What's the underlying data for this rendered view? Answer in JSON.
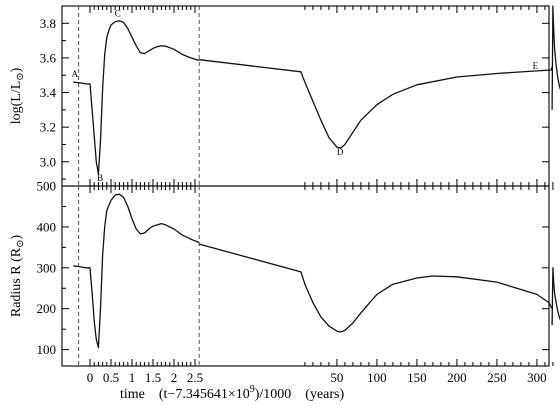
{
  "chart_data": {
    "type": "line",
    "xlabel_parts": [
      "time",
      "(t−7.345641×10",
      "9",
      ")/1000",
      "(years)"
    ],
    "x_tick_labels": [
      "0",
      "0.5",
      "1",
      "1.5",
      "2",
      "2.5",
      "50",
      "100",
      "150",
      "200",
      "250",
      "300"
    ],
    "panels": [
      {
        "id": "luminosity",
        "ylabel_parts": [
          "log(L/L",
          "⊙",
          ")"
        ],
        "ylim": [
          2.86,
          3.9
        ],
        "y_ticks": [
          3.0,
          3.2,
          3.4,
          3.6,
          3.8
        ],
        "y_tick_labels": [
          "3.0",
          "3.2",
          "3.4",
          "3.6",
          "3.8"
        ],
        "segments": [
          {
            "x": [
              -0.4,
              -0.2,
              -0.1,
              0.0,
              0.05,
              0.1,
              0.15,
              0.2,
              0.25,
              0.3,
              0.35,
              0.4,
              0.45,
              0.5,
              0.6,
              0.7,
              0.8,
              0.9,
              1.0,
              1.1,
              1.2,
              1.3,
              1.4,
              1.5,
              1.6,
              1.7,
              1.8,
              2.0,
              2.2,
              2.4,
              2.6
            ],
            "y": [
              3.46,
              3.455,
              3.45,
              3.45,
              3.3,
              3.15,
              3.0,
              2.93,
              3.12,
              3.42,
              3.62,
              3.72,
              3.76,
              3.79,
              3.81,
              3.815,
              3.805,
              3.77,
              3.72,
              3.67,
              3.63,
              3.625,
              3.64,
              3.655,
              3.665,
              3.67,
              3.668,
              3.65,
              3.62,
              3.6,
              3.585
            ]
          },
          {
            "x": [
              2.6,
              5,
              10,
              20,
              30,
              40,
              50,
              55,
              60,
              70,
              80,
              100,
              120,
              150,
              200,
              250,
              300,
              318,
              319
            ],
            "y": [
              3.59,
              3.52,
              3.46,
              3.35,
              3.24,
              3.14,
              3.085,
              3.08,
              3.1,
              3.17,
              3.24,
              3.33,
              3.39,
              3.445,
              3.49,
              3.51,
              3.525,
              3.53,
              3.55
            ]
          },
          {
            "x": [
              319,
              320,
              321,
              322,
              324,
              326,
              328,
              330
            ],
            "y": [
              3.3,
              3.9,
              3.76,
              3.66,
              3.56,
              3.49,
              3.44,
              3.41
            ]
          }
        ],
        "point_labels": [
          {
            "text": "A",
            "x": -0.36,
            "y": 3.49
          },
          {
            "text": "B",
            "x": 0.24,
            "y": 2.89
          },
          {
            "text": "C",
            "x": 0.66,
            "y": 3.84
          },
          {
            "text": "D",
            "x": 54,
            "y": 3.04
          },
          {
            "text": "E",
            "x": 298,
            "y": 3.535
          }
        ]
      },
      {
        "id": "radius",
        "ylabel_parts": [
          "Radius  R  (R",
          "⊙",
          ")"
        ],
        "ylim": [
          60,
          500
        ],
        "y_ticks": [
          100,
          200,
          300,
          400,
          500
        ],
        "y_tick_labels": [
          "100",
          "200",
          "300",
          "400",
          "500"
        ],
        "segments": [
          {
            "x": [
              -0.4,
              -0.2,
              -0.1,
              0.0,
              0.05,
              0.1,
              0.15,
              0.2,
              0.25,
              0.3,
              0.35,
              0.4,
              0.5,
              0.6,
              0.7,
              0.8,
              0.9,
              1.0,
              1.1,
              1.2,
              1.3,
              1.4,
              1.5,
              1.6,
              1.7,
              1.8,
              2.0,
              2.2,
              2.4,
              2.6
            ],
            "y": [
              305,
              302,
              300,
              300,
              240,
              170,
              125,
              105,
              200,
              330,
              400,
              440,
              465,
              478,
              480,
              472,
              450,
              420,
              395,
              383,
              385,
              395,
              402,
              405,
              408,
              405,
              395,
              380,
              370,
              362
            ]
          },
          {
            "x": [
              2.6,
              5,
              10,
              20,
              30,
              40,
              50,
              55,
              60,
              70,
              80,
              100,
              120,
              150,
              170,
              200,
              250,
              300,
              315,
              319
            ],
            "y": [
              358,
              290,
              260,
              215,
              180,
              158,
              145,
              143,
              147,
              165,
              190,
              235,
              260,
              275,
              280,
              278,
              265,
              235,
              215,
              200
            ]
          },
          {
            "x": [
              319,
              320,
              321,
              322,
              324,
              326,
              328,
              330
            ],
            "y": [
              160,
              300,
              265,
              240,
              215,
              195,
              180,
              170
            ]
          }
        ]
      }
    ]
  }
}
